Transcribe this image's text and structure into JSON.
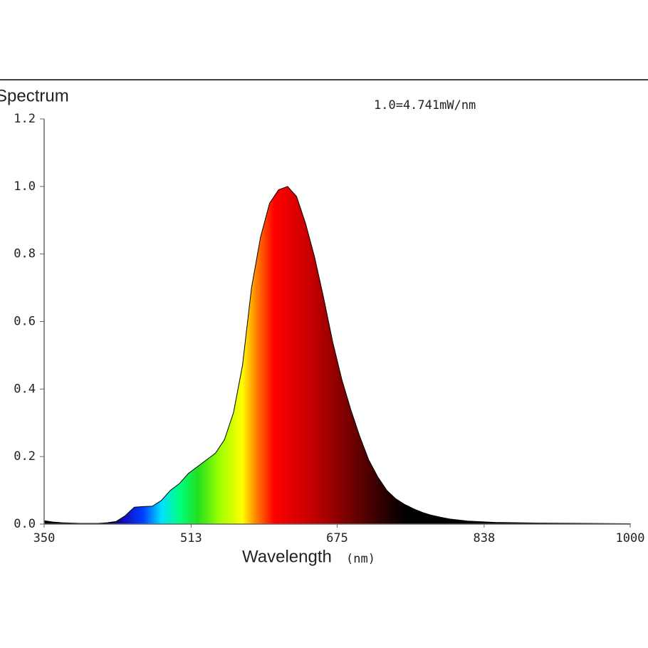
{
  "chart_data": {
    "type": "area",
    "title": "Spectrum",
    "annotation": "1.0=4.741mW/nm",
    "x_label": "Wavelength",
    "x_unit": "(nm)",
    "x": [
      350,
      360,
      370,
      380,
      390,
      400,
      410,
      420,
      430,
      440,
      450,
      460,
      470,
      480,
      490,
      500,
      510,
      520,
      530,
      540,
      550,
      560,
      570,
      580,
      590,
      600,
      610,
      620,
      630,
      640,
      650,
      660,
      670,
      680,
      690,
      700,
      710,
      720,
      730,
      740,
      750,
      760,
      770,
      780,
      790,
      800,
      820,
      850,
      900,
      950,
      1000
    ],
    "series": [
      {
        "name": "Spectrum",
        "color": "#000000",
        "values": [
          0.01,
          0.006,
          0.004,
          0.003,
          0.002,
          0.002,
          0.002,
          0.004,
          0.008,
          0.025,
          0.05,
          0.052,
          0.053,
          0.07,
          0.1,
          0.12,
          0.15,
          0.17,
          0.19,
          0.21,
          0.25,
          0.33,
          0.47,
          0.7,
          0.85,
          0.95,
          0.99,
          1.0,
          0.97,
          0.89,
          0.79,
          0.67,
          0.54,
          0.43,
          0.34,
          0.26,
          0.19,
          0.14,
          0.1,
          0.075,
          0.058,
          0.045,
          0.034,
          0.026,
          0.02,
          0.015,
          0.009,
          0.005,
          0.003,
          0.002,
          0.001
        ]
      }
    ],
    "xlim": [
      350,
      1000
    ],
    "xticks": [
      350,
      513,
      675,
      838,
      1000
    ],
    "ylim": [
      0,
      1.2
    ],
    "yticks": [
      {
        "value": 0,
        "label": "0.0"
      },
      {
        "value": 0.2,
        "label": "0.2"
      },
      {
        "value": 0.4,
        "label": "0.4"
      },
      {
        "value": 0.6,
        "label": "0.6"
      },
      {
        "value": 0.8,
        "label": "0.8"
      },
      {
        "value": 1,
        "label": "1.0"
      },
      {
        "value": 1.2,
        "label": "1.2"
      }
    ]
  }
}
